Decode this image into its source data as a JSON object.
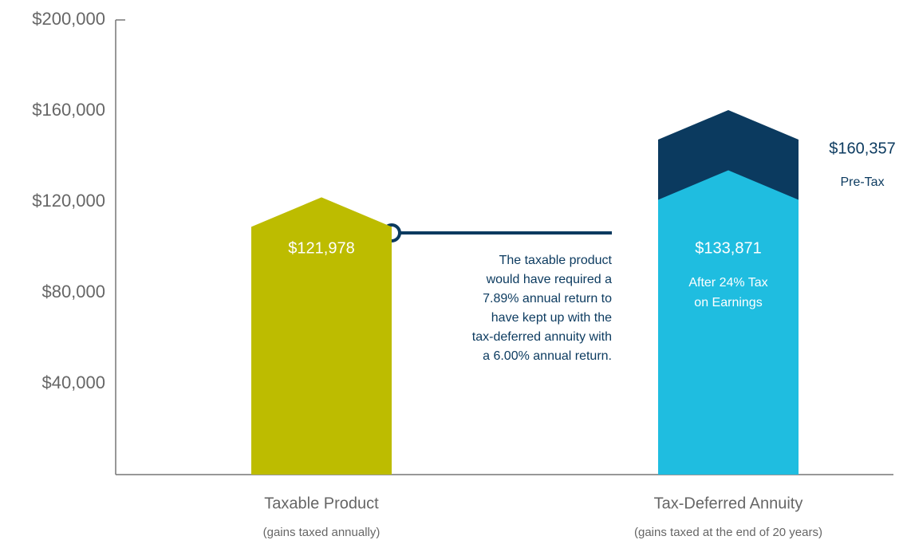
{
  "chart_data": {
    "type": "bar",
    "categories": [
      "Taxable Product",
      "Tax-Deferred Annuity"
    ],
    "category_notes": [
      "(gains taxed annually)",
      "(gains taxed at the end of 20 years)"
    ],
    "ylim": [
      0,
      200000
    ],
    "yticks": [
      {
        "value": 40000,
        "label": "$40,000"
      },
      {
        "value": 80000,
        "label": "$80,000"
      },
      {
        "value": 120000,
        "label": "$120,000"
      },
      {
        "value": 160000,
        "label": "$160,000"
      },
      {
        "value": 200000,
        "label": "$200,000"
      }
    ],
    "series": [
      {
        "color": "#bdbc00",
        "values": [
          121978,
          null
        ],
        "value_labels": [
          "$121,978",
          null
        ],
        "notes": [
          null,
          null
        ],
        "label_inside": true
      },
      {
        "color": "#0b3a5f",
        "values": [
          null,
          160357
        ],
        "value_labels": [
          null,
          "$160,357"
        ],
        "notes": [
          null,
          [
            "Pre-Tax"
          ]
        ],
        "label_inside": false
      },
      {
        "color": "#1fbde0",
        "values": [
          null,
          133871
        ],
        "value_labels": [
          null,
          "$133,871"
        ],
        "notes": [
          null,
          [
            "After 24% Tax",
            "on Earnings"
          ]
        ],
        "label_inside": true
      }
    ],
    "annotation": [
      "The taxable product",
      "would have required a",
      "7.89% annual return to",
      "have kept up with the",
      "tax-deferred annuity with",
      "a 6.00% annual return."
    ]
  }
}
